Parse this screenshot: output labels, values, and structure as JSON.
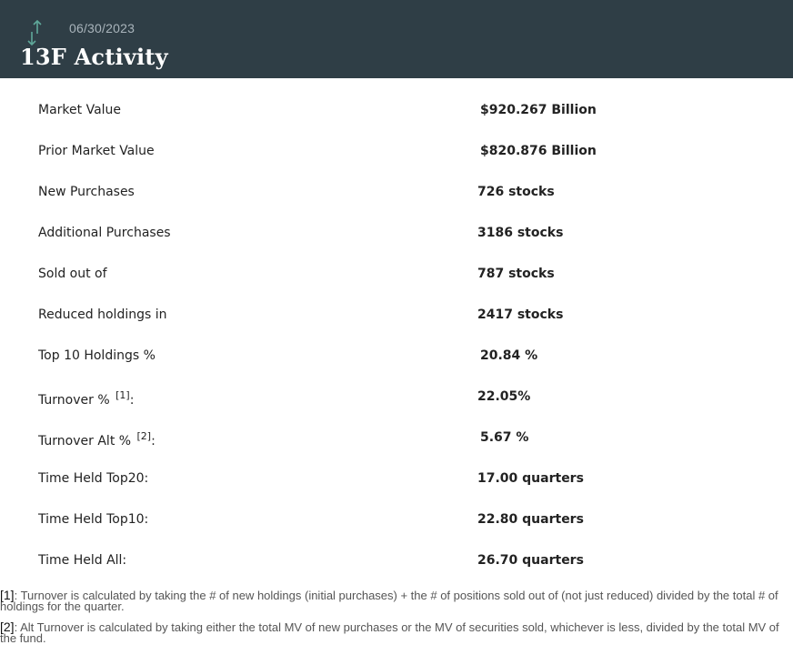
{
  "header": {
    "date": "06/30/2023",
    "title": "13F Activity",
    "icon": "up-down-arrows-icon",
    "icon_color": "#5fa89a",
    "background": "#2f3e46"
  },
  "stats": [
    {
      "label": "Market Value",
      "value": "$920.267 Billion"
    },
    {
      "label": "Prior Market Value",
      "value": "$820.876 Billion"
    },
    {
      "label": "New Purchases",
      "value": "726 stocks"
    },
    {
      "label": "Additional Purchases",
      "value": "3186 stocks"
    },
    {
      "label": "Sold out of",
      "value": "787 stocks"
    },
    {
      "label": "Reduced holdings in",
      "value": "2417 stocks"
    },
    {
      "label": "Top 10 Holdings %",
      "value": "20.84 %"
    },
    {
      "label": "Turnover %",
      "sup": "[1]",
      "suffix": ":",
      "value": "22.05%"
    },
    {
      "label": "Turnover Alt %",
      "sup": "[2]",
      "suffix": ":",
      "value": "5.67 %"
    },
    {
      "label": "Time Held Top20:",
      "value": "17.00 quarters"
    },
    {
      "label": "Time Held Top10:",
      "value": "22.80 quarters"
    },
    {
      "label": "Time Held All:",
      "value": "26.70 quarters"
    }
  ],
  "footnotes": [
    {
      "mark": "[1]",
      "text": ": Turnover is calculated by taking the # of new holdings (initial purchases) + the # of positions sold out of (not just reduced) divided by the total # of holdings for the quarter."
    },
    {
      "mark": "[2]",
      "text": ": Alt Turnover is calculated by taking either the total MV of new purchases or the MV of securities sold, whichever is less, divided by the total MV of the fund."
    }
  ]
}
